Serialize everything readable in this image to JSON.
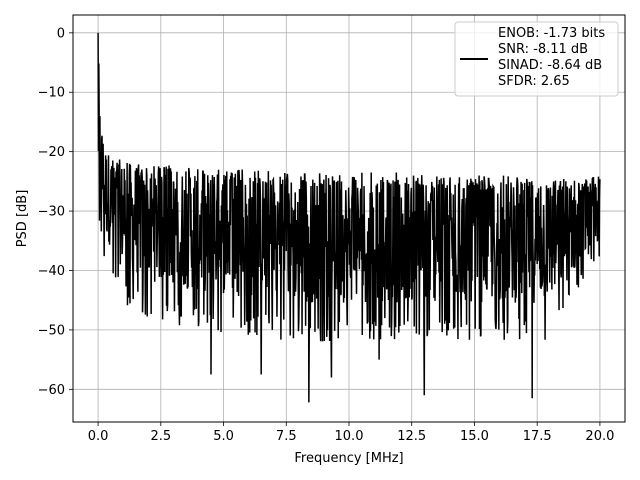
{
  "chart_data": {
    "type": "line",
    "xlabel": "Frequency [MHz]",
    "ylabel": "PSD [dB]",
    "xlim": [
      -1.0,
      21.0
    ],
    "ylim": [
      -65.5,
      3.0
    ],
    "xticks": [
      0.0,
      2.5,
      5.0,
      7.5,
      10.0,
      12.5,
      15.0,
      17.5,
      20.0
    ],
    "xtick_labels": [
      "0.0",
      "2.5",
      "5.0",
      "7.5",
      "10.0",
      "12.5",
      "15.0",
      "17.5",
      "20.0"
    ],
    "yticks": [
      0,
      -10,
      -20,
      -30,
      -40,
      -50,
      -60
    ],
    "ytick_labels": [
      "0",
      "−10",
      "−20",
      "−30",
      "−40",
      "−50",
      "−60"
    ],
    "grid": true,
    "legend": {
      "placement": "top-right",
      "entries": [
        "ENOB: -1.73 bits",
        "SNR: -8.11 dB",
        "SINAD: -8.64 dB",
        "SFDR: 2.65"
      ]
    },
    "series": [
      {
        "color": "#000000",
        "peak": {
          "x": 0.0,
          "y": 0.0
        },
        "upper_envelope": {
          "x": [
            0.0,
            0.1,
            0.3,
            0.5,
            1.0,
            2.0,
            4.0,
            6.0,
            8.0,
            10.0,
            12.0,
            14.0,
            16.0,
            18.0,
            20.0
          ],
          "y": [
            0.0,
            -15.0,
            -19.0,
            -21.0,
            -21.5,
            -22.0,
            -22.5,
            -23.0,
            -23.5,
            -23.5,
            -23.5,
            -24.0,
            -24.0,
            -24.0,
            -25.0
          ]
        },
        "lower_envelope": {
          "x": [
            0.0,
            0.3,
            1.0,
            2.0,
            4.0,
            6.0,
            8.0,
            10.0,
            12.0,
            14.0,
            16.0,
            18.0,
            20.0
          ],
          "y": [
            -34.0,
            -40.0,
            -46.0,
            -48.0,
            -50.0,
            -51.0,
            -52.0,
            -52.0,
            -52.0,
            -52.0,
            -52.0,
            -52.0,
            -40.0
          ]
        },
        "deep_dips": {
          "x": [
            4.5,
            6.5,
            8.4,
            9.3,
            11.2,
            13.0,
            17.3
          ],
          "y": [
            -57.5,
            -57.5,
            -62.2,
            -58.0,
            -55.0,
            -61.0,
            -61.5
          ]
        }
      }
    ]
  }
}
